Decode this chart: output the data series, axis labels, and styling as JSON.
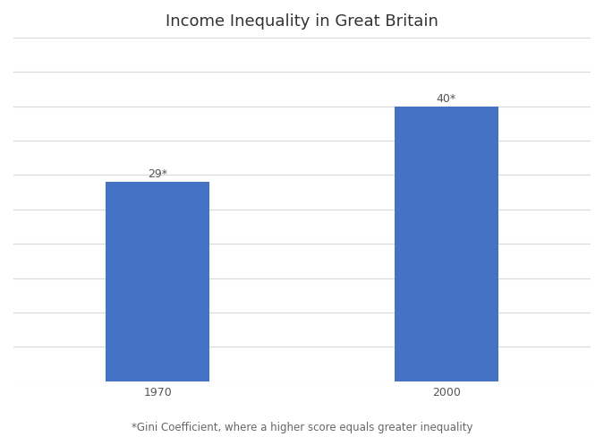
{
  "title": "Income Inequality in Great Britain",
  "categories": [
    "1970",
    "2000"
  ],
  "values": [
    29,
    40
  ],
  "bar_labels": [
    "29*",
    "40*"
  ],
  "bar_color": "#4472C4",
  "ylim": [
    0,
    50
  ],
  "yticks": [
    0,
    5,
    10,
    15,
    20,
    25,
    30,
    35,
    40,
    45,
    50
  ],
  "footnote": "*Gini Coefficient, where a higher score equals greater inequality",
  "background_color": "#FFFFFF",
  "grid_color": "#D9D9D9",
  "title_fontsize": 13,
  "label_fontsize": 9,
  "footnote_fontsize": 8.5,
  "tick_fontsize": 9,
  "bar_width": 0.18
}
